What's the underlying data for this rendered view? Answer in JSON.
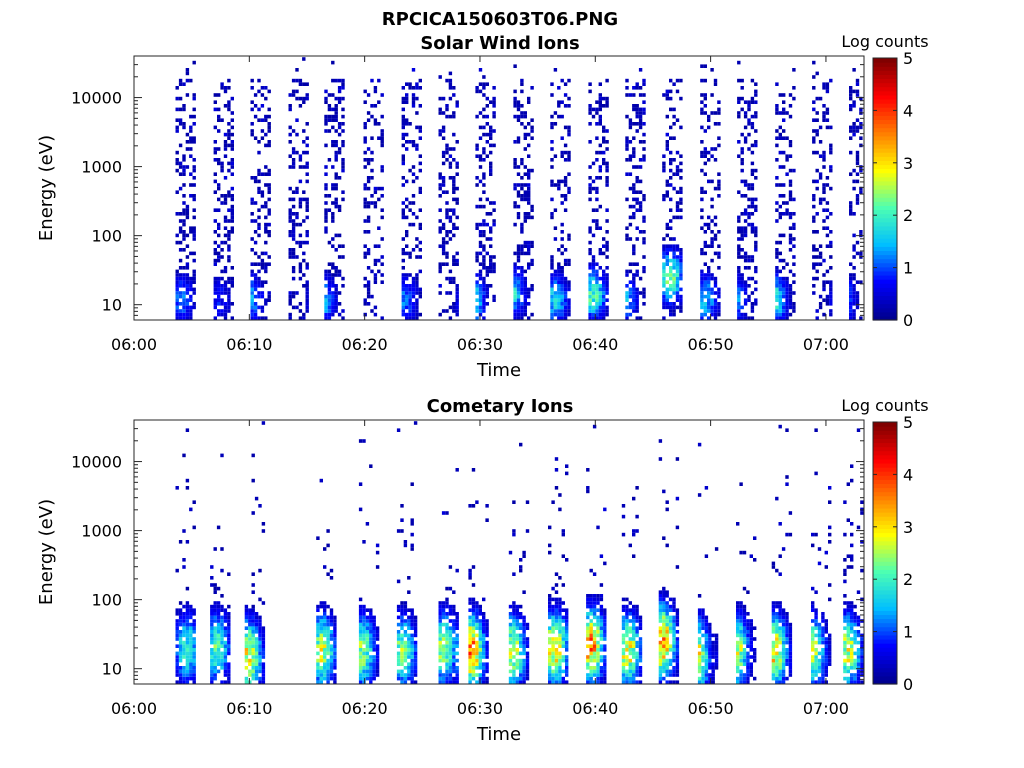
{
  "figure": {
    "title": "RPCICA150603T06.PNG",
    "colormap": [
      "#00008f",
      "#0000ff",
      "#00bfff",
      "#4dffb2",
      "#ffff00",
      "#ff8000",
      "#ff0000",
      "#800000"
    ]
  },
  "chart_data": [
    {
      "type": "heatmap",
      "title": "Solar Wind Ions",
      "xlabel": "Time",
      "ylabel": "Energy (eV)",
      "x_ticks": [
        "06:00",
        "06:10",
        "06:20",
        "06:30",
        "06:40",
        "06:50",
        "07:00"
      ],
      "x_tick_minutes": [
        0,
        10,
        20,
        30,
        40,
        50,
        60
      ],
      "xlim_minutes": [
        0,
        63.3
      ],
      "y_scale": "log",
      "ylim": [
        6,
        40000
      ],
      "y_ticks": [
        "10",
        "100",
        "1000",
        "10000"
      ],
      "y_tick_values": [
        10,
        100,
        1000,
        10000
      ],
      "colorbar": {
        "label": "Log counts",
        "ticks": [
          "0",
          "1",
          "2",
          "3",
          "4",
          "5"
        ],
        "range": [
          0,
          5
        ]
      },
      "sweep_start_minutes": [
        3.6,
        6.9,
        10.1,
        13.4,
        16.5,
        19.9,
        23.2,
        26.4,
        29.6,
        32.9,
        36.1,
        39.4,
        42.6,
        45.8,
        49.1,
        52.3,
        55.6,
        58.8,
        62.0
      ],
      "sweep_width_minutes": 1.6,
      "peaks": [
        {
          "t": 4.1,
          "e": 12,
          "v": 1.2
        },
        {
          "t": 7.4,
          "e": 12,
          "v": 0.8
        },
        {
          "t": 10.1,
          "e": 12,
          "v": 1.4
        },
        {
          "t": 16.3,
          "e": 12,
          "v": 1.6
        },
        {
          "t": 23.5,
          "e": 12,
          "v": 1.2
        },
        {
          "t": 29.3,
          "e": 12,
          "v": 2.0
        },
        {
          "t": 32.8,
          "e": 15,
          "v": 1.8
        },
        {
          "t": 36.5,
          "e": 12,
          "v": 1.7
        },
        {
          "t": 39.8,
          "e": 14,
          "v": 2.2
        },
        {
          "t": 42.5,
          "e": 12,
          "v": 1.5
        },
        {
          "t": 46.5,
          "e": 25,
          "v": 2.4
        },
        {
          "t": 49.5,
          "e": 12,
          "v": 1.6
        },
        {
          "t": 52.0,
          "e": 12,
          "v": 1.5
        },
        {
          "t": 55.5,
          "e": 12,
          "v": 2.0
        },
        {
          "t": 61.5,
          "e": 12,
          "v": 1.3
        }
      ],
      "background_max_energy": 18000
    },
    {
      "type": "heatmap",
      "title": "Cometary Ions",
      "xlabel": "Time",
      "ylabel": "Energy (eV)",
      "x_ticks": [
        "06:00",
        "06:10",
        "06:20",
        "06:30",
        "06:40",
        "06:50",
        "07:00"
      ],
      "x_tick_minutes": [
        0,
        10,
        20,
        30,
        40,
        50,
        60
      ],
      "xlim_minutes": [
        0,
        63.3
      ],
      "y_scale": "log",
      "ylim": [
        6,
        40000
      ],
      "y_ticks": [
        "10",
        "100",
        "1000",
        "10000"
      ],
      "y_tick_values": [
        10,
        100,
        1000,
        10000
      ],
      "colorbar": {
        "label": "Log counts",
        "ticks": [
          "0",
          "1",
          "2",
          "3",
          "4",
          "5"
        ],
        "range": [
          0,
          5
        ]
      },
      "sweep_start_minutes": [
        3.6,
        6.6,
        9.6,
        15.8,
        19.5,
        22.8,
        26.4,
        29.0,
        32.5,
        35.9,
        39.2,
        42.3,
        45.5,
        48.9,
        52.2,
        55.3,
        58.7,
        61.5
      ],
      "sweep_width_minutes": 1.6,
      "peaks": [
        {
          "t": 4.6,
          "e": 20,
          "v": 2.0
        },
        {
          "t": 7.2,
          "e": 20,
          "v": 2.2
        },
        {
          "t": 9.9,
          "e": 15,
          "v": 3.1
        },
        {
          "t": 16.3,
          "e": 18,
          "v": 2.8
        },
        {
          "t": 19.8,
          "e": 18,
          "v": 2.5
        },
        {
          "t": 23.3,
          "e": 18,
          "v": 2.5
        },
        {
          "t": 26.8,
          "e": 20,
          "v": 2.6
        },
        {
          "t": 29.2,
          "e": 18,
          "v": 3.9
        },
        {
          "t": 32.8,
          "e": 18,
          "v": 2.9
        },
        {
          "t": 36.5,
          "e": 20,
          "v": 3.2
        },
        {
          "t": 39.6,
          "e": 22,
          "v": 3.7
        },
        {
          "t": 42.8,
          "e": 18,
          "v": 3.0
        },
        {
          "t": 45.8,
          "e": 25,
          "v": 3.6
        },
        {
          "t": 48.7,
          "e": 15,
          "v": 3.3
        },
        {
          "t": 52.1,
          "e": 18,
          "v": 3.2
        },
        {
          "t": 55.5,
          "e": 18,
          "v": 3.2
        },
        {
          "t": 58.8,
          "e": 18,
          "v": 2.7
        },
        {
          "t": 61.9,
          "e": 18,
          "v": 2.8
        }
      ],
      "background_max_energy": 9000
    }
  ]
}
